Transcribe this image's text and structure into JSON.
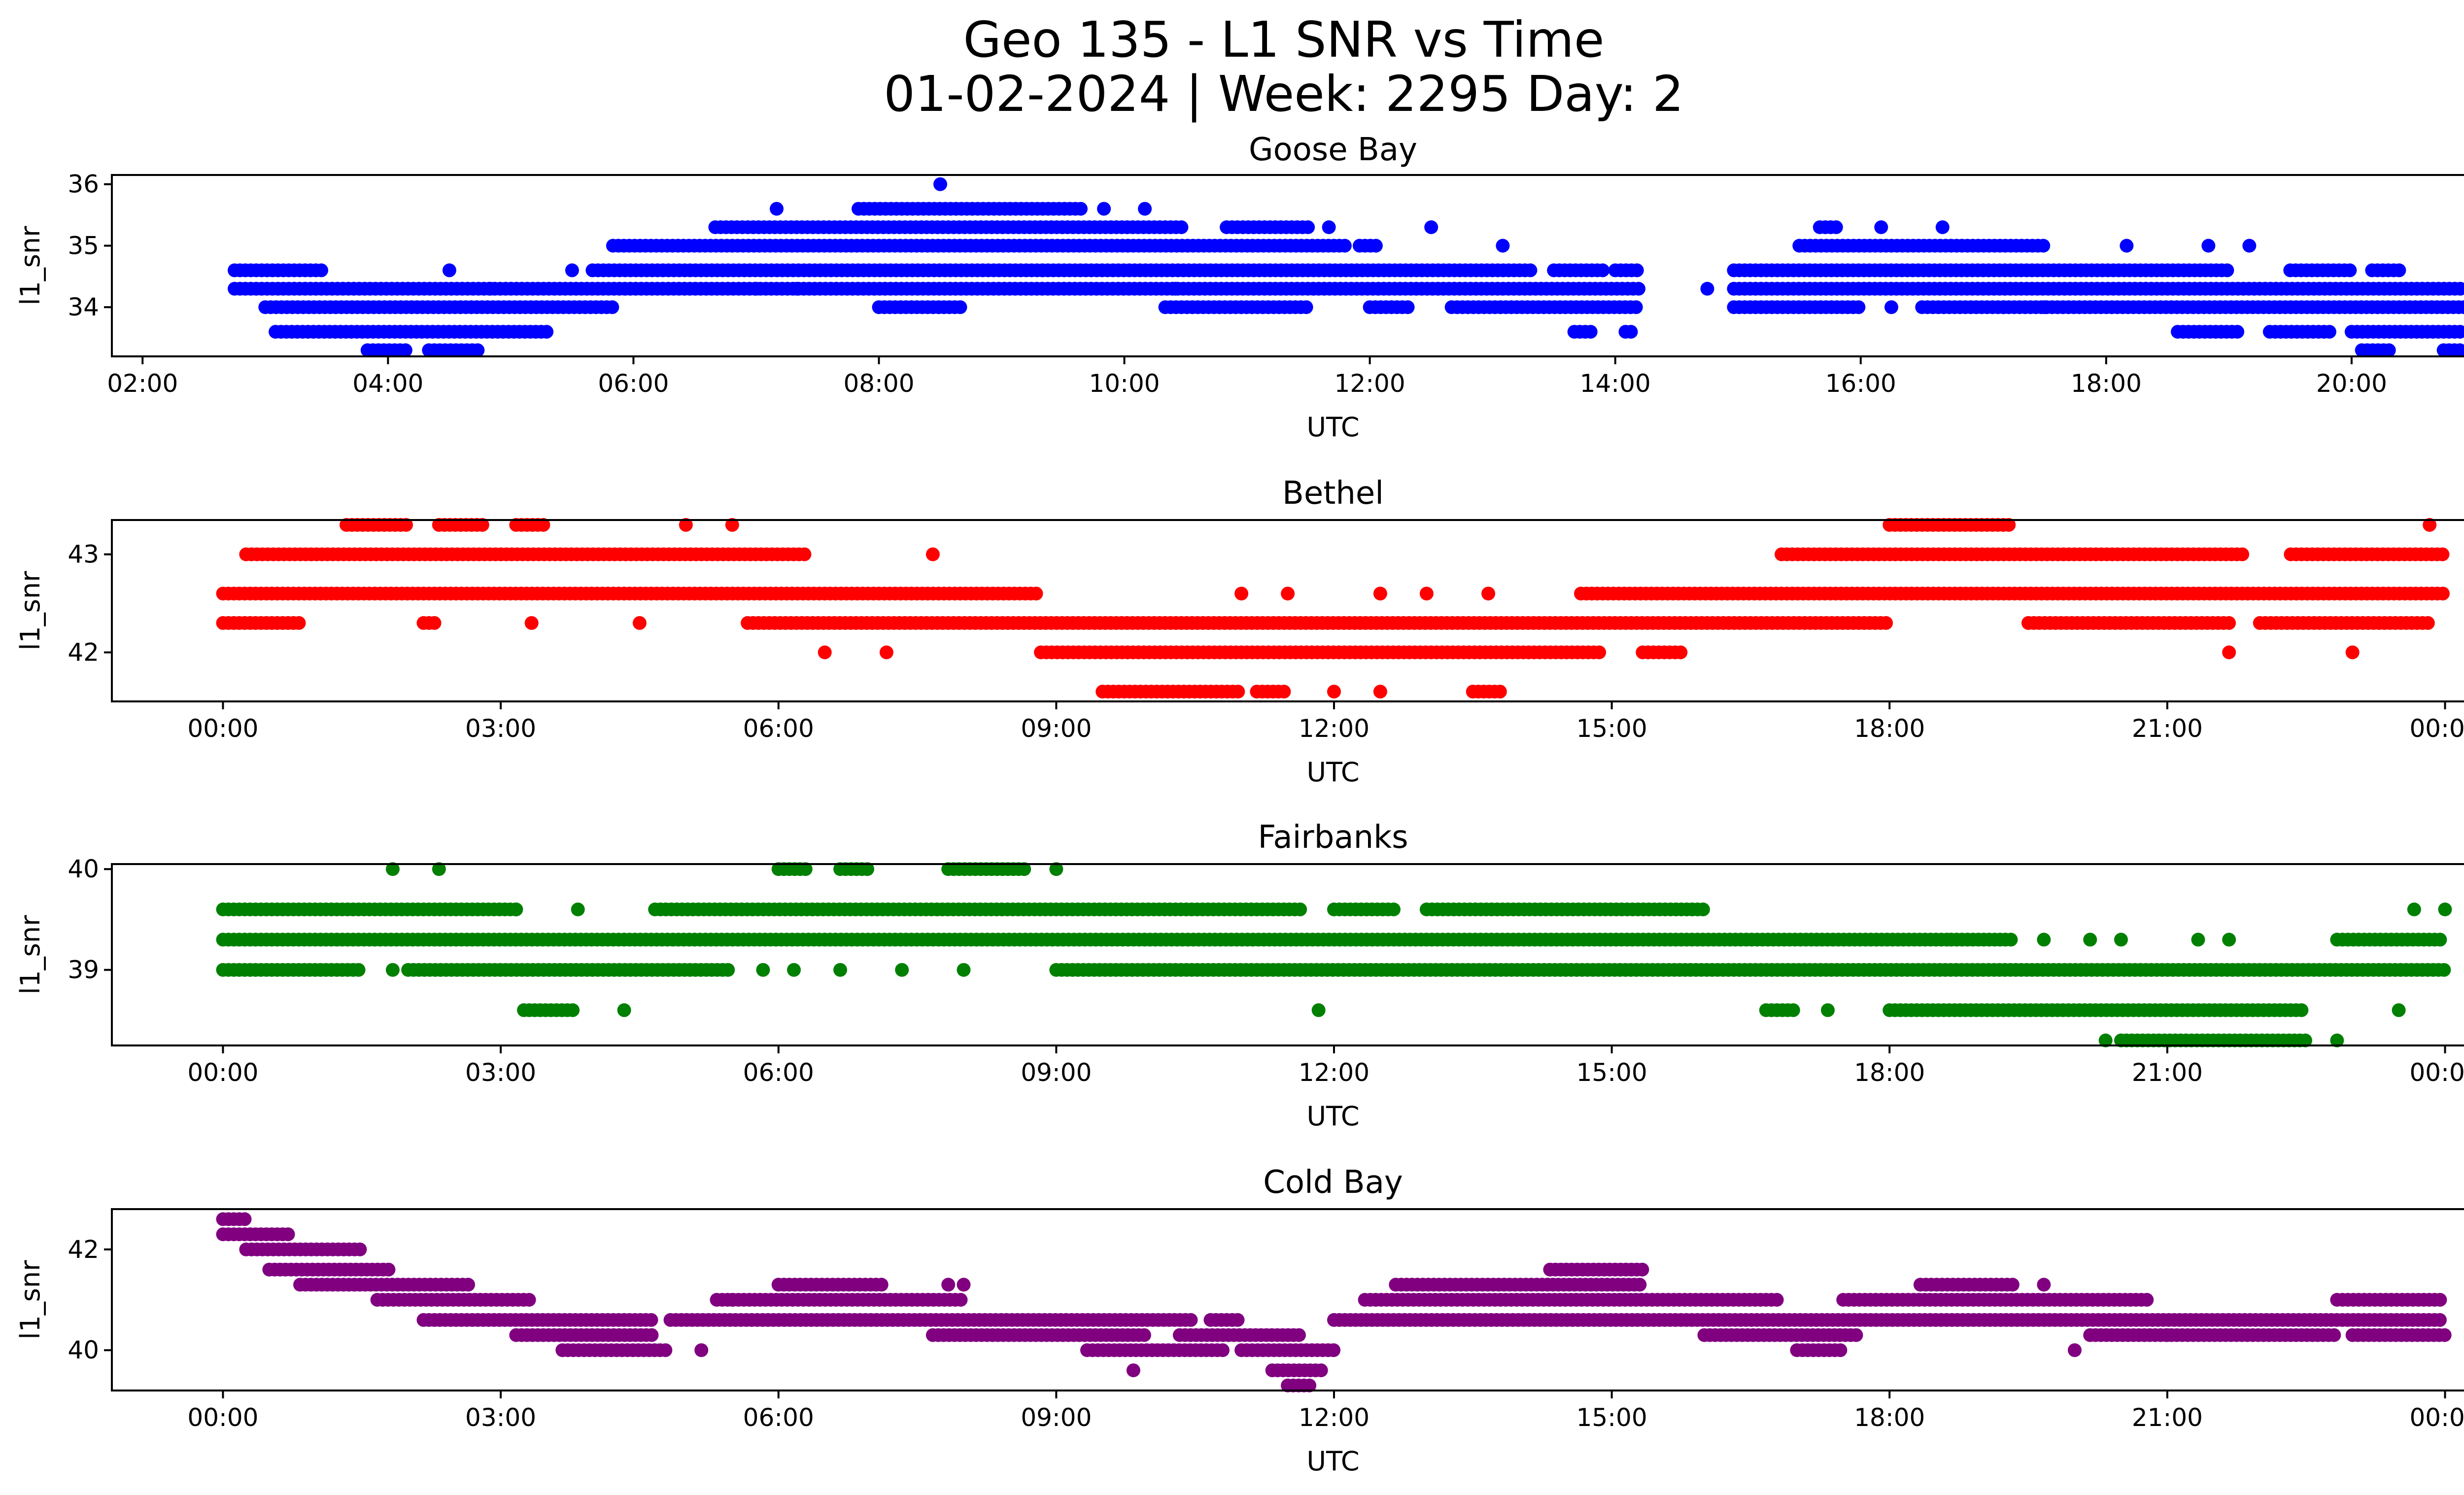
{
  "figure": {
    "title_line1": "Geo 135 - L1 SNR vs Time",
    "title_line2": "01-02-2024 | Week: 2295 Day: 2"
  },
  "chart_data": [
    {
      "type": "scatter",
      "title": "Goose Bay",
      "xlabel": "UTC",
      "ylabel": "l1_snr",
      "color": "#0000ff",
      "xlim": [
        "01:45",
        "21:40"
      ],
      "ylim": [
        33.2,
        36.15
      ],
      "x_ticks": [
        "02:00",
        "04:00",
        "06:00",
        "08:00",
        "10:00",
        "12:00",
        "14:00",
        "16:00",
        "18:00",
        "20:00"
      ],
      "y_ticks": [
        34,
        35,
        36
      ],
      "levels": [
        33.3,
        33.6,
        34.0,
        34.3,
        34.6,
        35.0,
        35.3,
        35.6,
        36.0
      ],
      "bands": [
        {
          "y": 34.3,
          "segments": [
            [
              "02:45",
              "14:12"
            ],
            [
              "14:58",
              "20:55"
            ]
          ]
        },
        {
          "y": 34.0,
          "segments": [
            [
              "03:00",
              "05:50"
            ],
            [
              "08:00",
              "08:40"
            ],
            [
              "10:20",
              "11:30"
            ],
            [
              "12:00",
              "12:20"
            ],
            [
              "12:40",
              "14:12"
            ],
            [
              "14:58",
              "16:00"
            ],
            [
              "16:30",
              "20:55"
            ]
          ]
        },
        {
          "y": 34.6,
          "segments": [
            [
              "02:45",
              "03:30"
            ],
            [
              "05:40",
              "13:20"
            ],
            [
              "13:30",
              "13:55"
            ],
            [
              "14:00",
              "14:12"
            ],
            [
              "14:58",
              "19:00"
            ],
            [
              "19:30",
              "20:00"
            ],
            [
              "20:10",
              "20:25"
            ]
          ]
        },
        {
          "y": 35.0,
          "segments": [
            [
              "05:50",
              "11:50"
            ],
            [
              "11:55",
              "12:05"
            ],
            [
              "15:30",
              "17:30"
            ]
          ]
        },
        {
          "y": 33.6,
          "segments": [
            [
              "03:05",
              "05:20"
            ],
            [
              "13:40",
              "13:50"
            ],
            [
              "14:05",
              "14:08"
            ],
            [
              "18:35",
              "19:05"
            ],
            [
              "19:20",
              "19:50"
            ],
            [
              "20:00",
              "20:55"
            ]
          ]
        },
        {
          "y": 35.3,
          "segments": [
            [
              "06:40",
              "10:30"
            ],
            [
              "10:50",
              "11:30"
            ],
            [
              "15:40",
              "15:50"
            ]
          ]
        },
        {
          "y": 33.3,
          "segments": [
            [
              "03:50",
              "04:10"
            ],
            [
              "04:20",
              "04:45"
            ],
            [
              "20:05",
              "20:20"
            ],
            [
              "20:45",
              "20:55"
            ]
          ]
        },
        {
          "y": 35.6,
          "segments": [
            [
              "07:50",
              "09:40"
            ]
          ]
        }
      ],
      "points": [
        [
          "04:30",
          34.6
        ],
        [
          "05:30",
          34.6
        ],
        [
          "07:10",
          35.6
        ],
        [
          "08:30",
          36.0
        ],
        [
          "09:50",
          35.6
        ],
        [
          "10:10",
          35.6
        ],
        [
          "11:40",
          35.3
        ],
        [
          "12:30",
          35.3
        ],
        [
          "13:05",
          35.0
        ],
        [
          "14:45",
          34.3
        ],
        [
          "16:10",
          35.3
        ],
        [
          "16:40",
          35.3
        ],
        [
          "18:10",
          35.0
        ],
        [
          "18:50",
          35.0
        ],
        [
          "19:10",
          35.0
        ],
        [
          "04:50",
          34.3
        ],
        [
          "09:20",
          34.6
        ],
        [
          "10:25",
          34.3
        ],
        [
          "07:00",
          34.3
        ],
        [
          "07:20",
          34.3
        ],
        [
          "16:15",
          34.0
        ],
        [
          "17:10",
          34.0
        ],
        [
          "17:30",
          34.0
        ]
      ]
    },
    {
      "type": "scatter",
      "title": "Bethel",
      "xlabel": "UTC",
      "ylabel": "l1_snr",
      "color": "#ff0000",
      "xlim": [
        "-01:12",
        "25:12"
      ],
      "ylim": [
        41.5,
        43.35
      ],
      "x_ticks": [
        "00:00",
        "03:00",
        "06:00",
        "09:00",
        "12:00",
        "15:00",
        "18:00",
        "21:00",
        "00:00"
      ],
      "y_ticks": [
        42,
        43
      ],
      "levels": [
        41.6,
        42.0,
        42.3,
        42.6,
        43.0,
        43.3
      ],
      "bands": [
        {
          "y": 42.6,
          "segments": [
            [
              "00:00",
              "08:50"
            ],
            [
              "14:40",
              "24:00"
            ]
          ]
        },
        {
          "y": 42.3,
          "segments": [
            [
              "00:00",
              "00:50"
            ],
            [
              "02:10",
              "02:20"
            ],
            [
              "05:40",
              "18:00"
            ],
            [
              "19:30",
              "21:40"
            ],
            [
              "22:00",
              "23:50"
            ]
          ]
        },
        {
          "y": 43.0,
          "segments": [
            [
              "00:15",
              "06:20"
            ],
            [
              "16:50",
              "21:50"
            ],
            [
              "22:20",
              "24:00"
            ]
          ]
        },
        {
          "y": 42.0,
          "segments": [
            [
              "08:50",
              "14:55"
            ],
            [
              "15:20",
              "15:45"
            ]
          ]
        },
        {
          "y": 43.3,
          "segments": [
            [
              "01:20",
              "02:00"
            ],
            [
              "02:20",
              "02:50"
            ],
            [
              "03:10",
              "03:30"
            ],
            [
              "18:00",
              "19:20"
            ]
          ]
        },
        {
          "y": 41.6,
          "segments": [
            [
              "09:30",
              "11:00"
            ],
            [
              "11:10",
              "11:30"
            ],
            [
              "13:30",
              "13:50"
            ]
          ]
        }
      ],
      "points": [
        [
          "06:30",
          42.0
        ],
        [
          "07:10",
          42.0
        ],
        [
          "07:40",
          43.0
        ],
        [
          "05:00",
          43.3
        ],
        [
          "05:30",
          43.3
        ],
        [
          "03:20",
          42.3
        ],
        [
          "04:30",
          42.3
        ],
        [
          "11:00",
          42.6
        ],
        [
          "11:30",
          42.6
        ],
        [
          "12:30",
          42.6
        ],
        [
          "13:00",
          42.6
        ],
        [
          "13:40",
          42.6
        ],
        [
          "12:00",
          41.6
        ],
        [
          "12:30",
          41.6
        ],
        [
          "19:30",
          42.3
        ],
        [
          "21:40",
          42.0
        ],
        [
          "23:00",
          42.0
        ],
        [
          "23:50",
          43.3
        ]
      ]
    },
    {
      "type": "scatter",
      "title": "Fairbanks",
      "xlabel": "UTC",
      "ylabel": "l1_snr",
      "color": "#008000",
      "xlim": [
        "-01:12",
        "25:12"
      ],
      "ylim": [
        38.25,
        40.05
      ],
      "x_ticks": [
        "00:00",
        "03:00",
        "06:00",
        "09:00",
        "12:00",
        "15:00",
        "18:00",
        "21:00",
        "00:00"
      ],
      "y_ticks": [
        39,
        40
      ],
      "levels": [
        38.3,
        38.6,
        39.0,
        39.3,
        39.6,
        40.0
      ],
      "bands": [
        {
          "y": 39.3,
          "segments": [
            [
              "00:00",
              "18:40"
            ],
            [
              "18:40",
              "19:20"
            ],
            [
              "22:50",
              "24:00"
            ]
          ]
        },
        {
          "y": 39.0,
          "segments": [
            [
              "00:00",
              "01:30"
            ],
            [
              "02:00",
              "05:30"
            ],
            [
              "09:00",
              "24:00"
            ]
          ]
        },
        {
          "y": 39.6,
          "segments": [
            [
              "00:00",
              "03:10"
            ],
            [
              "04:40",
              "11:40"
            ],
            [
              "12:00",
              "12:40"
            ],
            [
              "13:00",
              "16:00"
            ]
          ]
        },
        {
          "y": 38.6,
          "segments": [
            [
              "03:15",
              "03:50"
            ],
            [
              "16:40",
              "17:00"
            ],
            [
              "18:00",
              "22:30"
            ]
          ]
        },
        {
          "y": 38.3,
          "segments": [
            [
              "20:30",
              "22:30"
            ]
          ]
        },
        {
          "y": 40.0,
          "segments": [
            [
              "06:00",
              "06:20"
            ],
            [
              "06:40",
              "07:00"
            ],
            [
              "07:50",
              "08:40"
            ]
          ]
        }
      ],
      "points": [
        [
          "01:50",
          40.0
        ],
        [
          "02:20",
          40.0
        ],
        [
          "09:00",
          40.0
        ],
        [
          "03:10",
          39.6
        ],
        [
          "03:50",
          39.6
        ],
        [
          "01:50",
          39.0
        ],
        [
          "05:50",
          39.0
        ],
        [
          "06:10",
          39.0
        ],
        [
          "06:40",
          39.0
        ],
        [
          "07:20",
          39.0
        ],
        [
          "08:00",
          39.0
        ],
        [
          "04:20",
          38.6
        ],
        [
          "11:50",
          38.6
        ],
        [
          "17:20",
          38.6
        ],
        [
          "19:40",
          39.3
        ],
        [
          "20:10",
          39.3
        ],
        [
          "20:30",
          39.3
        ],
        [
          "21:20",
          39.3
        ],
        [
          "21:40",
          39.3
        ],
        [
          "20:20",
          38.3
        ],
        [
          "22:50",
          38.3
        ],
        [
          "23:30",
          38.6
        ],
        [
          "23:40",
          39.6
        ],
        [
          "24:00",
          39.6
        ]
      ]
    },
    {
      "type": "scatter",
      "title": "Cold Bay",
      "xlabel": "UTC",
      "ylabel": "l1_snr",
      "color": "#800080",
      "xlim": [
        "-01:12",
        "25:12"
      ],
      "ylim": [
        39.2,
        42.8
      ],
      "x_ticks": [
        "00:00",
        "03:00",
        "06:00",
        "09:00",
        "12:00",
        "15:00",
        "18:00",
        "21:00",
        "00:00"
      ],
      "y_ticks": [
        40,
        42
      ],
      "levels": [
        39.3,
        39.6,
        40.0,
        40.3,
        40.6,
        41.0,
        41.3,
        41.6,
        42.0,
        42.3,
        42.6
      ],
      "bands": [
        {
          "y": 42.6,
          "segments": [
            [
              "00:00",
              "00:15"
            ]
          ]
        },
        {
          "y": 42.3,
          "segments": [
            [
              "00:00",
              "00:45"
            ]
          ]
        },
        {
          "y": 42.0,
          "segments": [
            [
              "00:15",
              "01:30"
            ]
          ]
        },
        {
          "y": 41.6,
          "segments": [
            [
              "00:30",
              "01:50"
            ]
          ]
        },
        {
          "y": 41.3,
          "segments": [
            [
              "00:50",
              "02:40"
            ],
            [
              "06:00",
              "07:10"
            ],
            [
              "12:40",
              "15:20"
            ],
            [
              "18:20",
              "19:20"
            ]
          ]
        },
        {
          "y": 41.0,
          "segments": [
            [
              "01:40",
              "03:20"
            ],
            [
              "05:20",
              "08:00"
            ],
            [
              "12:20",
              "16:50"
            ],
            [
              "17:30",
              "20:50"
            ],
            [
              "22:50",
              "24:00"
            ]
          ]
        },
        {
          "y": 40.6,
          "segments": [
            [
              "02:10",
              "04:40"
            ],
            [
              "04:50",
              "10:30"
            ],
            [
              "10:40",
              "11:00"
            ],
            [
              "12:00",
              "24:00"
            ]
          ]
        },
        {
          "y": 40.3,
          "segments": [
            [
              "03:10",
              "04:40"
            ],
            [
              "07:40",
              "10:00"
            ],
            [
              "10:20",
              "11:40"
            ],
            [
              "16:00",
              "17:40"
            ],
            [
              "20:10",
              "22:50"
            ],
            [
              "23:00",
              "24:00"
            ]
          ]
        },
        {
          "y": 40.0,
          "segments": [
            [
              "03:40",
              "04:50"
            ],
            [
              "09:20",
              "10:50"
            ],
            [
              "11:00",
              "12:00"
            ],
            [
              "17:00",
              "17:30"
            ]
          ]
        },
        {
          "y": 39.6,
          "segments": [
            [
              "11:20",
              "11:55"
            ]
          ]
        },
        {
          "y": 39.3,
          "segments": [
            [
              "11:30",
              "11:45"
            ]
          ]
        },
        {
          "y": 41.6,
          "segments": [
            [
              "14:20",
              "15:20"
            ]
          ]
        }
      ],
      "points": [
        [
          "05:10",
          40.0
        ],
        [
          "05:30",
          41.0
        ],
        [
          "09:50",
          39.6
        ],
        [
          "08:00",
          41.3
        ],
        [
          "07:50",
          41.3
        ],
        [
          "19:40",
          41.3
        ],
        [
          "20:00",
          40.0
        ],
        [
          "21:00",
          40.3
        ]
      ]
    }
  ]
}
